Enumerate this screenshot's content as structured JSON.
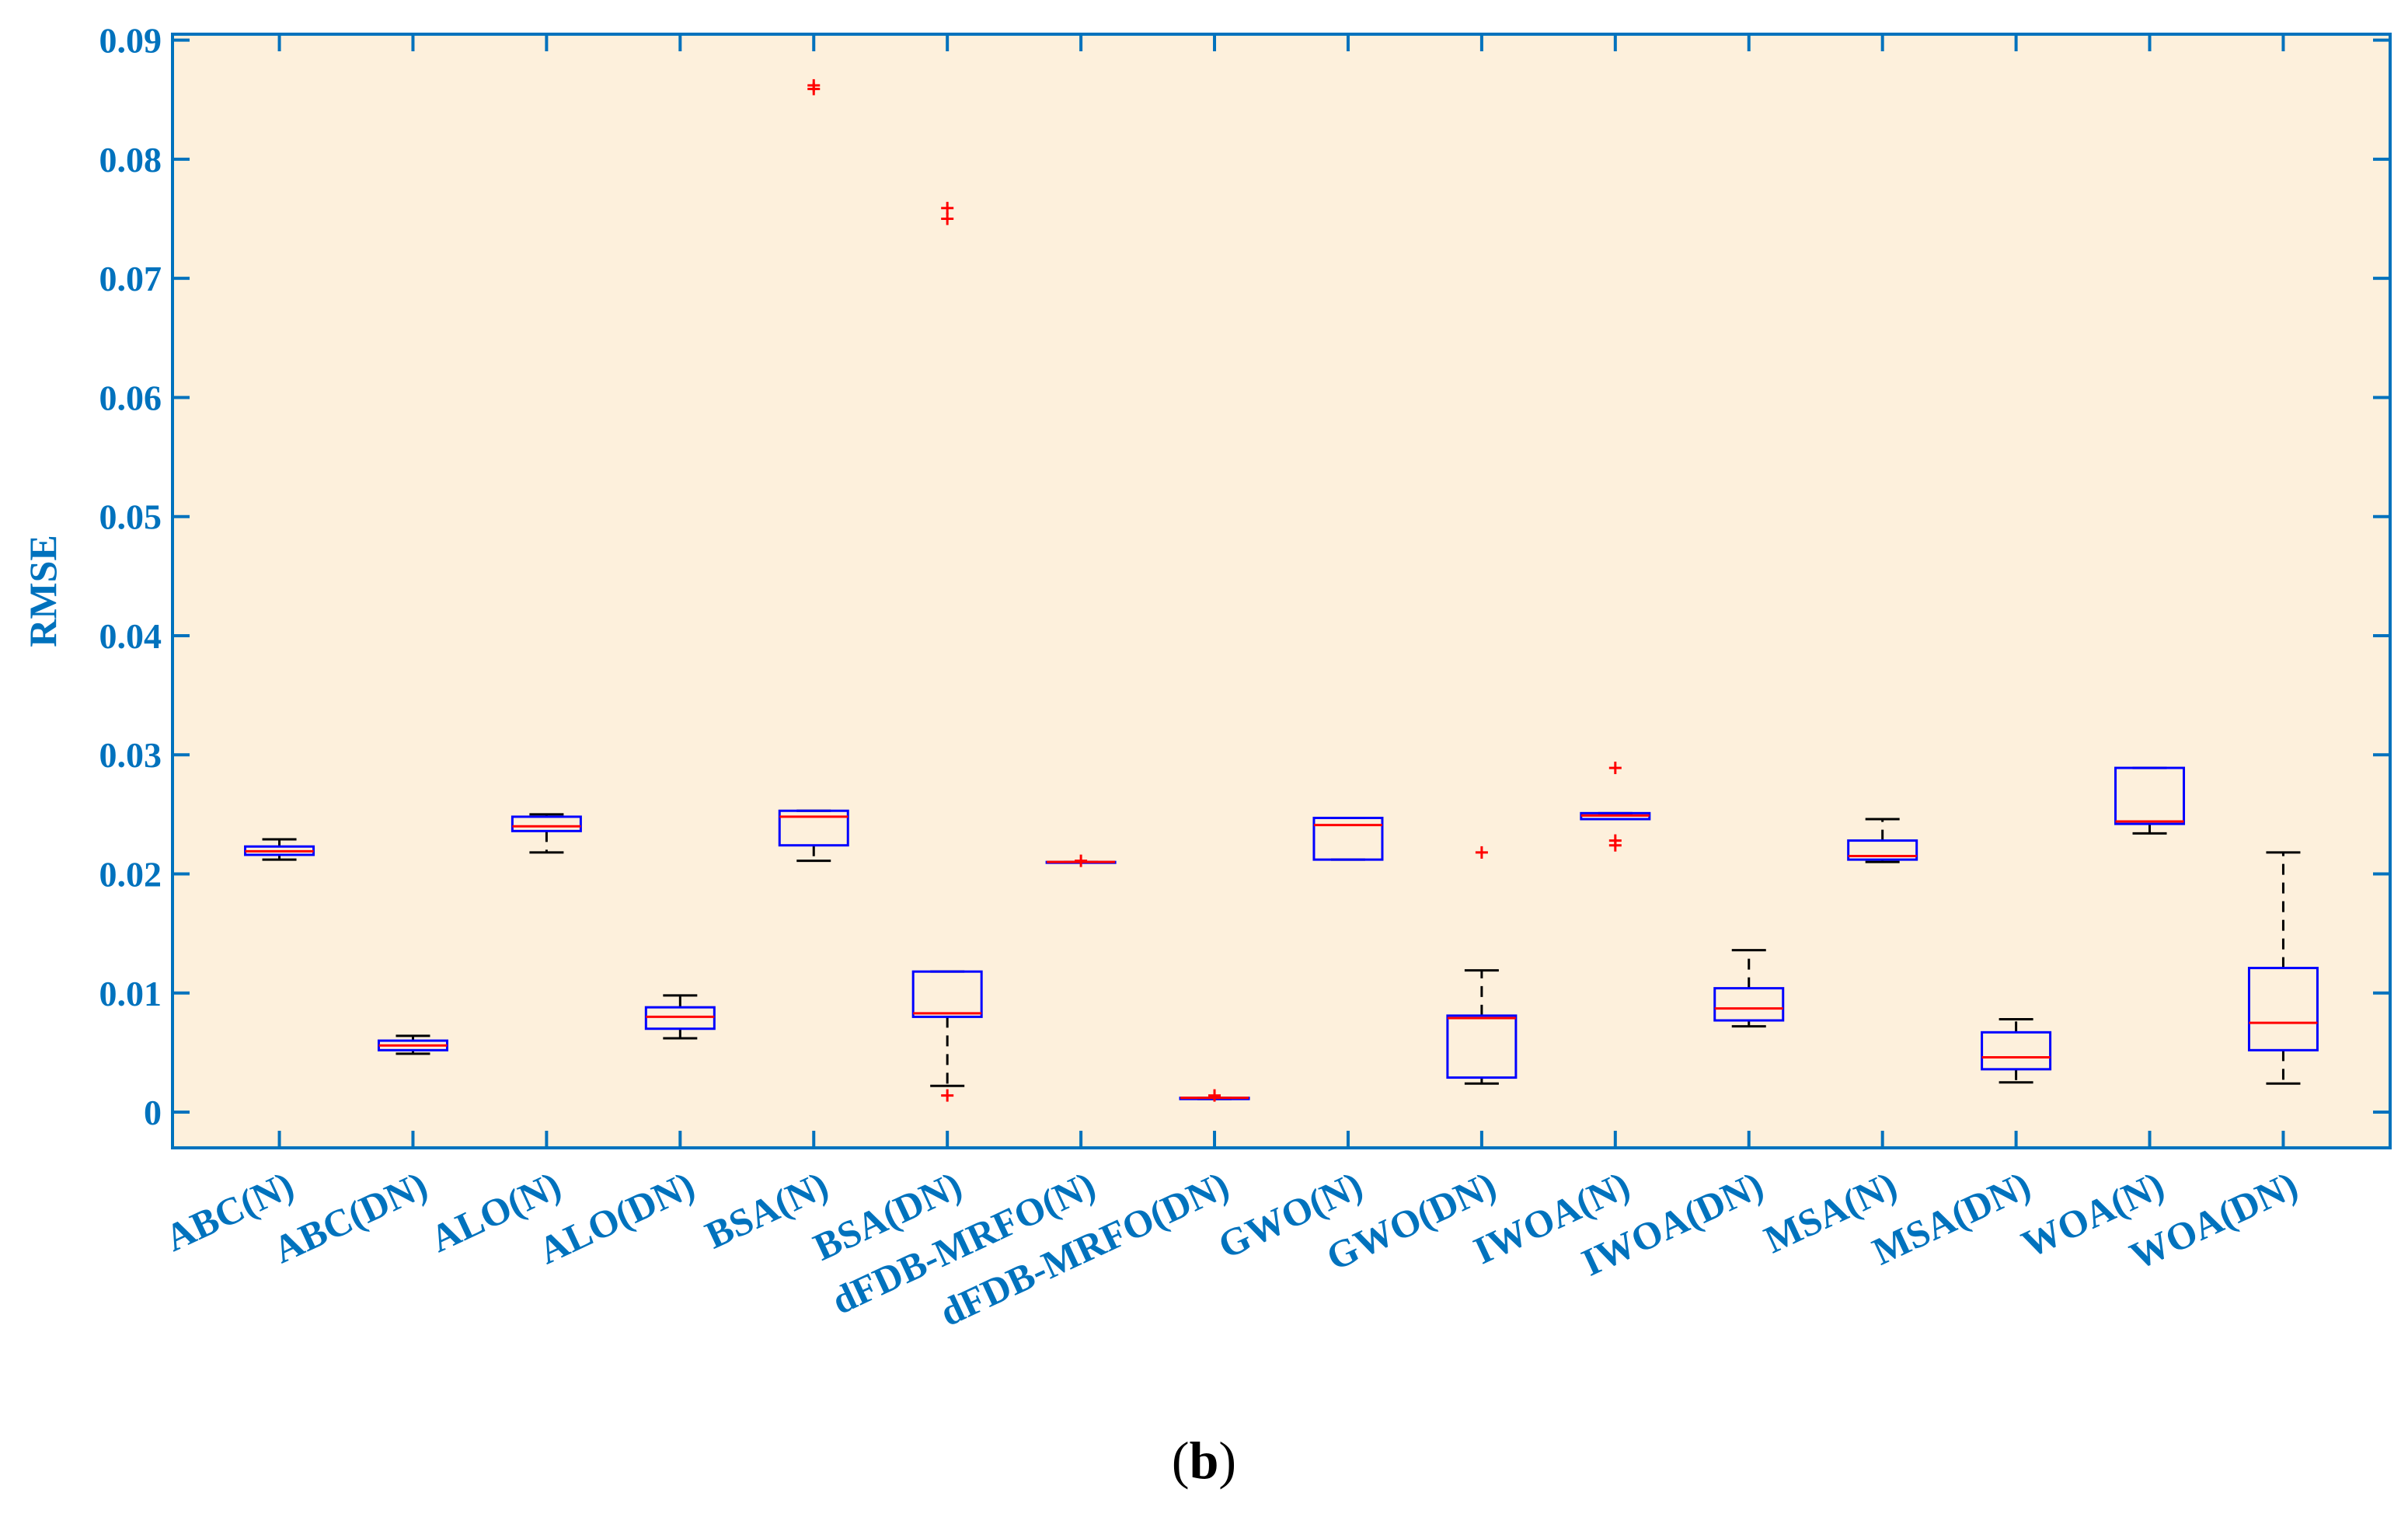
{
  "chart_data": {
    "type": "box",
    "ylabel": "RMSE",
    "xlabel": "",
    "ylim": [
      -0.003,
      0.0905
    ],
    "yticks": [
      0,
      0.01,
      0.02,
      0.03,
      0.04,
      0.05,
      0.06,
      0.07,
      0.08,
      0.09
    ],
    "ytick_labels": [
      "0",
      "0.01",
      "0.02",
      "0.03",
      "0.04",
      "0.05",
      "0.06",
      "0.07",
      "0.08",
      "0.09"
    ],
    "grid": false,
    "categories": [
      "ABC(N)",
      "ABC(DN)",
      "ALO(N)",
      "ALO(DN)",
      "BSA(N)",
      "BSA(DN)",
      "dFDB-MRFO(N)",
      "dFDB-MRFO(DN)",
      "GWO(N)",
      "GWO(DN)",
      "IWOA(N)",
      "IWOA(DN)",
      "MSA(N)",
      "MSA(DN)",
      "WOA(N)",
      "WOA(DN)"
    ],
    "boxes": [
      {
        "whisker_low": 0.0212,
        "q1": 0.0216,
        "median": 0.0219,
        "q3": 0.0223,
        "whisker_high": 0.0229,
        "outliers": []
      },
      {
        "whisker_low": 0.0049,
        "q1": 0.0052,
        "median": 0.0056,
        "q3": 0.006,
        "whisker_high": 0.0064,
        "outliers": []
      },
      {
        "whisker_low": 0.0218,
        "q1": 0.0236,
        "median": 0.024,
        "q3": 0.0248,
        "whisker_high": 0.025,
        "outliers": []
      },
      {
        "whisker_low": 0.0062,
        "q1": 0.007,
        "median": 0.008,
        "q3": 0.0088,
        "whisker_high": 0.0098,
        "outliers": []
      },
      {
        "whisker_low": 0.0211,
        "q1": 0.0224,
        "median": 0.0248,
        "q3": 0.0253,
        "whisker_high": 0.0253,
        "outliers": [
          0.0859,
          0.0862
        ]
      },
      {
        "whisker_low": 0.0022,
        "q1": 0.008,
        "median": 0.0083,
        "q3": 0.0118,
        "whisker_high": 0.0118,
        "outliers": [
          0.0014,
          0.075,
          0.0759
        ]
      },
      {
        "whisker_low": 0.021,
        "q1": 0.021,
        "median": 0.021,
        "q3": 0.021,
        "whisker_high": 0.021,
        "outliers": [
          0.0211
        ]
      },
      {
        "whisker_low": 0.0011,
        "q1": 0.0011,
        "median": 0.0012,
        "q3": 0.0012,
        "whisker_high": 0.0012,
        "outliers": [
          0.0014
        ]
      },
      {
        "whisker_low": 0.0212,
        "q1": 0.0212,
        "median": 0.0241,
        "q3": 0.0247,
        "whisker_high": 0.0247,
        "outliers": []
      },
      {
        "whisker_low": 0.0024,
        "q1": 0.0029,
        "median": 0.0079,
        "q3": 0.0081,
        "whisker_high": 0.0119,
        "outliers": [
          0.0218
        ]
      },
      {
        "whisker_low": 0.0246,
        "q1": 0.0246,
        "median": 0.0249,
        "q3": 0.0251,
        "whisker_high": 0.0251,
        "outliers": [
          0.0224,
          0.0228,
          0.0289
        ]
      },
      {
        "whisker_low": 0.0072,
        "q1": 0.0077,
        "median": 0.0087,
        "q3": 0.0104,
        "whisker_high": 0.0136,
        "outliers": []
      },
      {
        "whisker_low": 0.021,
        "q1": 0.0212,
        "median": 0.0215,
        "q3": 0.0228,
        "whisker_high": 0.0246,
        "outliers": []
      },
      {
        "whisker_low": 0.0025,
        "q1": 0.0036,
        "median": 0.0046,
        "q3": 0.0067,
        "whisker_high": 0.0078,
        "outliers": []
      },
      {
        "whisker_low": 0.0234,
        "q1": 0.0242,
        "median": 0.0244,
        "q3": 0.0289,
        "whisker_high": 0.0289,
        "outliers": []
      },
      {
        "whisker_low": 0.0024,
        "q1": 0.0052,
        "median": 0.0075,
        "q3": 0.0121,
        "whisker_high": 0.0218,
        "outliers": []
      }
    ],
    "colors": {
      "axis": "#0072BD",
      "background": "#FDF0DC",
      "box": "#0000FF",
      "median": "#FF0000",
      "whisker": "#000000",
      "outlier": "#FF0000"
    }
  },
  "caption": {
    "open": "(",
    "letter": "b",
    "close": ")"
  }
}
